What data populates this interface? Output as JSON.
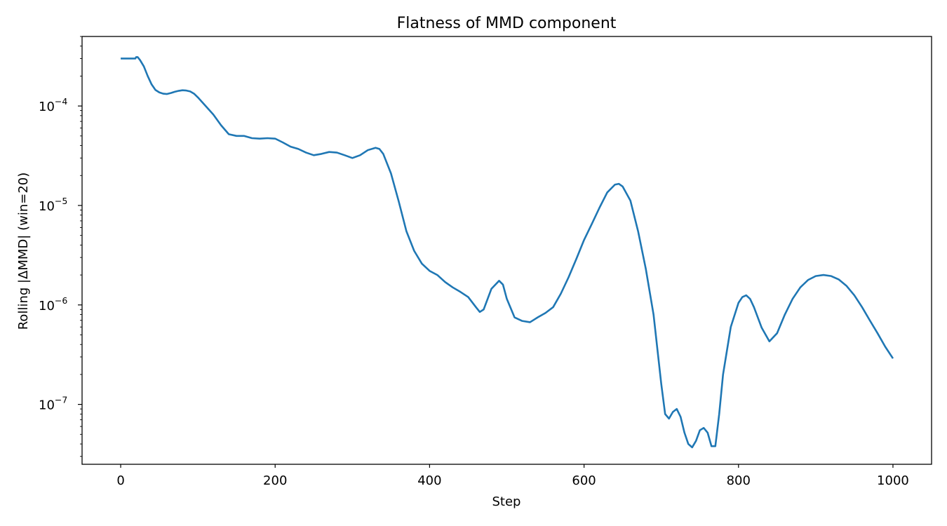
{
  "chart_data": {
    "type": "line",
    "title": "Flatness of MMD component",
    "xlabel": "Step",
    "ylabel": "Rolling |ΔMMD| (win=20)",
    "xlim": [
      -50,
      1050
    ],
    "ylim": [
      2.5e-08,
      0.0005
    ],
    "y_scale": "log",
    "grid": false,
    "line_color": "#1f77b4",
    "x_ticks": [
      {
        "value": 0,
        "label": "0"
      },
      {
        "value": 200,
        "label": "200"
      },
      {
        "value": 400,
        "label": "400"
      },
      {
        "value": 600,
        "label": "600"
      },
      {
        "value": 800,
        "label": "800"
      },
      {
        "value": 1000,
        "label": "1000"
      }
    ],
    "y_ticks": [
      {
        "value": 0.0001,
        "base": "10",
        "exp": "−4"
      },
      {
        "value": 1e-05,
        "base": "10",
        "exp": "−5"
      },
      {
        "value": 1e-06,
        "base": "10",
        "exp": "−6"
      },
      {
        "value": 1e-07,
        "base": "10",
        "exp": "−7"
      }
    ],
    "series": [
      {
        "x": [
          0,
          10,
          19,
          20,
          22,
          25,
          30,
          35,
          40,
          45,
          50,
          55,
          60,
          65,
          70,
          75,
          80,
          85,
          90,
          95,
          100,
          110,
          120,
          130,
          140,
          150,
          160,
          170,
          180,
          190,
          200,
          210,
          220,
          230,
          240,
          250,
          260,
          270,
          280,
          290,
          300,
          310,
          320,
          330,
          335,
          340,
          350,
          360,
          370,
          380,
          390,
          400,
          410,
          420,
          430,
          440,
          450,
          460,
          465,
          470,
          480,
          490,
          495,
          500,
          510,
          520,
          530,
          540,
          550,
          560,
          570,
          580,
          590,
          600,
          610,
          620,
          630,
          640,
          645,
          650,
          660,
          670,
          680,
          690,
          700,
          705,
          710,
          715,
          720,
          725,
          730,
          735,
          740,
          745,
          750,
          755,
          760,
          765,
          770,
          775,
          780,
          790,
          800,
          805,
          810,
          815,
          820,
          830,
          840,
          850,
          860,
          870,
          880,
          890,
          900,
          910,
          920,
          930,
          940,
          950,
          960,
          970,
          980,
          990,
          1000
        ],
        "y": [
          0.0003,
          0.0003,
          0.0003,
          0.00031,
          0.00031,
          0.00029,
          0.00025,
          0.0002,
          0.000165,
          0.000145,
          0.000137,
          0.000133,
          0.000132,
          0.000135,
          0.000139,
          0.000142,
          0.000144,
          0.000143,
          0.00014,
          0.000133,
          0.000122,
          0.0001,
          8.2e-05,
          6.4e-05,
          5.2e-05,
          5e-05,
          5e-05,
          4.75e-05,
          4.7e-05,
          4.75e-05,
          4.7e-05,
          4.3e-05,
          3.9e-05,
          3.7e-05,
          3.4e-05,
          3.2e-05,
          3.3e-05,
          3.45e-05,
          3.4e-05,
          3.2e-05,
          3e-05,
          3.2e-05,
          3.6e-05,
          3.8e-05,
          3.7e-05,
          3.3e-05,
          2.1e-05,
          1.1e-05,
          5.5e-06,
          3.5e-06,
          2.6e-06,
          2.2e-06,
          2e-06,
          1.7e-06,
          1.5e-06,
          1.35e-06,
          1.2e-06,
          9.5e-07,
          8.5e-07,
          9e-07,
          1.45e-06,
          1.75e-06,
          1.6e-06,
          1.15e-06,
          7.5e-07,
          6.9e-07,
          6.7e-07,
          7.5e-07,
          8.3e-07,
          9.5e-07,
          1.3e-06,
          1.9e-06,
          2.9e-06,
          4.5e-06,
          6.5e-06,
          9.5e-06,
          1.35e-05,
          1.62e-05,
          1.65e-05,
          1.55e-05,
          1.12e-05,
          5.5e-06,
          2.3e-06,
          8e-07,
          1.6e-07,
          8e-08,
          7.2e-08,
          8.4e-08,
          9e-08,
          7.5e-08,
          5.2e-08,
          4e-08,
          3.7e-08,
          4.3e-08,
          5.5e-08,
          5.8e-08,
          5.2e-08,
          3.8e-08,
          3.8e-08,
          8e-08,
          2e-07,
          6e-07,
          1.05e-06,
          1.2e-06,
          1.25e-06,
          1.15e-06,
          9.5e-07,
          5.9e-07,
          4.3e-07,
          5.2e-07,
          8e-07,
          1.15e-06,
          1.5e-06,
          1.78e-06,
          1.95e-06,
          2e-06,
          1.95e-06,
          1.8e-06,
          1.55e-06,
          1.25e-06,
          9.5e-07,
          7e-07,
          5.2e-07,
          3.8e-07,
          2.9e-07
        ]
      }
    ]
  }
}
